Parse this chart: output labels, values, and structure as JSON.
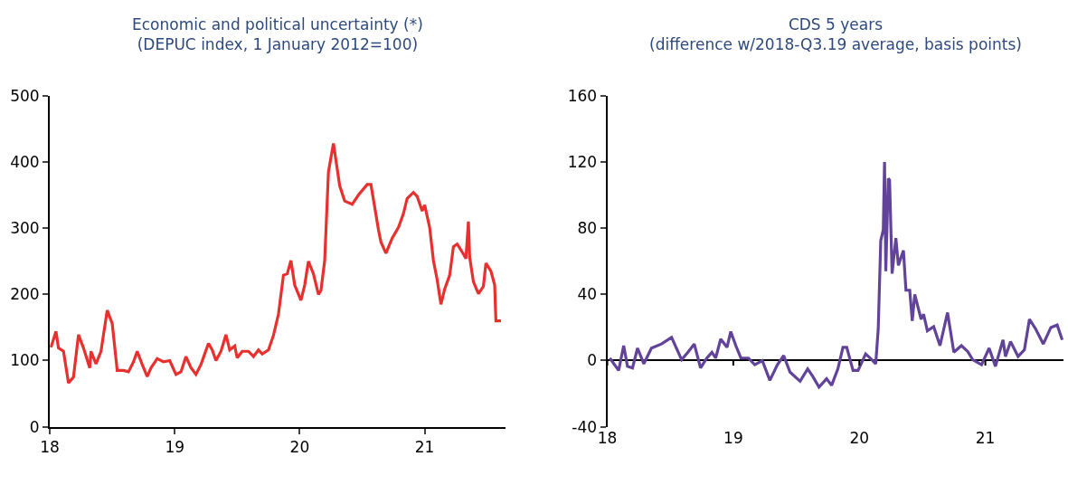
{
  "chart_data": [
    {
      "type": "line",
      "title": "Economic and political uncertainty (*)",
      "subtitle": "(DEPUC index, 1 January 2012=100)",
      "xlim": [
        18,
        21.65
      ],
      "xticks": [
        18,
        19,
        20,
        21
      ],
      "ylim": [
        0,
        500
      ],
      "yticks": [
        0,
        100,
        200,
        300,
        400,
        500
      ],
      "series": [
        {
          "color": "#e8302e",
          "x": [
            18.01,
            18.05,
            18.07,
            18.11,
            18.15,
            18.19,
            18.23,
            18.27,
            18.32,
            18.33,
            18.37,
            18.41,
            18.46,
            18.5,
            18.54,
            18.59,
            18.63,
            18.67,
            18.7,
            18.74,
            18.78,
            18.81,
            18.86,
            18.91,
            18.96,
            19.01,
            19.05,
            19.09,
            19.13,
            19.17,
            19.21,
            19.27,
            19.3,
            19.33,
            19.37,
            19.41,
            19.44,
            19.48,
            19.5,
            19.54,
            19.59,
            19.63,
            19.67,
            19.7,
            19.75,
            19.79,
            19.83,
            19.87,
            19.9,
            19.93,
            19.96,
            20.01,
            20.04,
            20.07,
            20.11,
            20.15,
            20.17,
            20.2,
            20.23,
            20.27,
            20.32,
            20.36,
            20.42,
            20.47,
            20.54,
            20.57,
            20.63,
            20.65,
            20.69,
            20.74,
            20.79,
            20.83,
            20.86,
            20.91,
            20.94,
            20.98,
            21.0,
            21.04,
            21.07,
            21.1,
            21.13,
            21.16,
            21.2,
            21.23,
            21.26,
            21.3,
            21.33,
            21.35,
            21.36,
            21.39,
            21.43,
            21.47,
            21.49,
            21.53,
            21.56,
            21.57,
            21.61
          ],
          "values": [
            120,
            144,
            119,
            114,
            66,
            75,
            139,
            119,
            89,
            114,
            95,
            114,
            176,
            156,
            85,
            85,
            83,
            98,
            114,
            94,
            76,
            89,
            103,
            98,
            100,
            79,
            83,
            106,
            89,
            79,
            94,
            126,
            116,
            100,
            114,
            139,
            116,
            122,
            104,
            114,
            114,
            106,
            116,
            110,
            116,
            138,
            170,
            229,
            231,
            251,
            214,
            191,
            214,
            250,
            231,
            200,
            206,
            251,
            385,
            428,
            364,
            341,
            336,
            350,
            366,
            366,
            298,
            279,
            262,
            285,
            301,
            322,
            345,
            354,
            348,
            326,
            335,
            301,
            251,
            222,
            185,
            208,
            229,
            272,
            276,
            264,
            254,
            310,
            256,
            219,
            201,
            212,
            247,
            235,
            214,
            160,
            160
          ]
        }
      ]
    },
    {
      "type": "line",
      "title": "CDS 5 years",
      "subtitle": "(difference w/2018-Q3.19 average, basis points)",
      "xlim": [
        18,
        21.62
      ],
      "xticks": [
        18,
        19,
        20,
        21
      ],
      "ylim": [
        -40,
        160
      ],
      "yticks": [
        -40,
        0,
        40,
        80,
        120,
        160
      ],
      "series": [
        {
          "color": "#61439a",
          "x": [
            18.02,
            18.09,
            18.13,
            18.16,
            18.2,
            18.24,
            18.29,
            18.35,
            18.43,
            18.51,
            18.59,
            18.64,
            18.69,
            18.74,
            18.79,
            18.83,
            18.86,
            18.9,
            18.95,
            18.98,
            19.02,
            19.06,
            19.12,
            19.17,
            19.23,
            19.29,
            19.35,
            19.4,
            19.45,
            19.53,
            19.59,
            19.63,
            19.68,
            19.74,
            19.78,
            19.83,
            19.87,
            19.9,
            19.95,
            19.99,
            20.05,
            20.1,
            20.13,
            20.15,
            20.17,
            20.19,
            20.2,
            20.21,
            20.23,
            20.24,
            20.26,
            20.29,
            20.31,
            20.35,
            20.37,
            20.4,
            20.42,
            20.44,
            20.49,
            20.51,
            20.54,
            20.59,
            20.64,
            20.7,
            20.75,
            20.81,
            20.86,
            20.9,
            20.97,
            21.03,
            21.08,
            21.14,
            21.16,
            21.2,
            21.26,
            21.31,
            21.35,
            21.4,
            21.46,
            21.52,
            21.57,
            21.61
          ],
          "values": [
            1.5,
            -6,
            9,
            -3.5,
            -4.5,
            7.5,
            -2,
            7.5,
            10,
            14,
            0.5,
            5,
            10,
            -4.5,
            1.5,
            5,
            1.5,
            13,
            8,
            17.5,
            9,
            1.5,
            1.5,
            -2.5,
            0,
            -12,
            -2.5,
            3,
            -7,
            -12.5,
            -5,
            -9.5,
            -16,
            -11,
            -15,
            -5,
            8,
            8,
            -6,
            -6,
            4,
            0.5,
            -2,
            19,
            72.5,
            79,
            120,
            54,
            110,
            109,
            52.5,
            74,
            57.5,
            66.5,
            42.5,
            42.5,
            24,
            40,
            25,
            28,
            18,
            20.5,
            9,
            29,
            5,
            9,
            5.5,
            0.5,
            -2.5,
            7.5,
            -3.5,
            12.5,
            2.5,
            11.5,
            2.5,
            6.5,
            25,
            19,
            10,
            20,
            21.5,
            12.5
          ]
        }
      ]
    }
  ]
}
